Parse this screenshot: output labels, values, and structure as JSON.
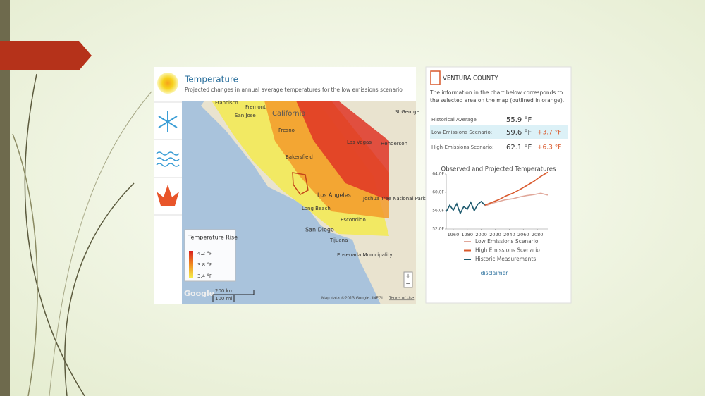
{
  "map_panel": {
    "title": "Temperature",
    "subtitle": "Projected changes in annual average temperatures for the low emissions scenario",
    "places": [
      "Francisco",
      "Fremont",
      "San Jose",
      "California",
      "Fresno",
      "Las Vegas",
      "St George",
      "Henderson",
      "Bakersfield",
      "Los Angeles",
      "Joshua Tree National Park",
      "Long Beach",
      "Escondido",
      "San Diego",
      "Tijuana",
      "Ensenada Municipality"
    ],
    "legend": {
      "title": "Temperature Rise",
      "labels": [
        "4.2 °F",
        "3.8 °F",
        "3.4 °F"
      ]
    },
    "scale": [
      "200 km",
      "100 mi"
    ],
    "zoom": [
      "+",
      "−"
    ],
    "logo": "Google",
    "attribution": "Map data ©2013 Google, INEGI",
    "terms": "Terms of Use"
  },
  "info_panel": {
    "county": "VENTURA COUNTY",
    "description": "The information in the chart below corresponds to the selected area on the map (outlined in orange).",
    "rows": [
      [
        "Historical Average",
        "55.9 °F"
      ],
      [
        "Low-Emissions Scenario:",
        "59.6 °F",
        "+3.7 °F"
      ],
      [
        "High-Emissions Scenario:",
        "62.1 °F",
        "+6.3 °F"
      ]
    ],
    "disclaimer": "disclaimer"
  },
  "chart_data": {
    "type": "line",
    "title": "Observed and Projected Temperatures",
    "xlim": [
      1950,
      2095
    ],
    "xticks": [
      1960,
      1980,
      2000,
      2020,
      2040,
      2060,
      2080
    ],
    "ylim": [
      52,
      64
    ],
    "yticks": [
      {
        "value": 52,
        "label": "52.0F"
      },
      {
        "value": 56,
        "label": "56.0F"
      },
      {
        "value": 60,
        "label": "60.0F"
      },
      {
        "value": 64,
        "label": "64.0F"
      }
    ],
    "series": [
      {
        "name": "Low Emissions Scenario",
        "color": "#e0a79a",
        "x": [
          2005,
          2015,
          2025,
          2035,
          2045,
          2055,
          2065,
          2075,
          2085,
          2095
        ],
        "values": [
          57.0,
          57.6,
          58.0,
          58.4,
          58.6,
          59.0,
          59.3,
          59.5,
          59.8,
          59.4
        ]
      },
      {
        "name": "High Emissions Scenario",
        "color": "#d9582b",
        "x": [
          2005,
          2015,
          2025,
          2035,
          2045,
          2055,
          2065,
          2075,
          2085,
          2095
        ],
        "values": [
          57.2,
          57.8,
          58.4,
          59.2,
          59.8,
          60.6,
          61.5,
          62.4,
          63.5,
          64.4
        ]
      },
      {
        "name": "Historic Measurements",
        "color": "#1d5a6e",
        "x": [
          1950,
          1955,
          1960,
          1965,
          1970,
          1975,
          1980,
          1985,
          1990,
          1995,
          2000,
          2005
        ],
        "values": [
          55.8,
          57.2,
          56.1,
          57.5,
          55.4,
          56.9,
          56.3,
          57.8,
          56.0,
          57.4,
          58.0,
          57.2
        ]
      }
    ]
  }
}
